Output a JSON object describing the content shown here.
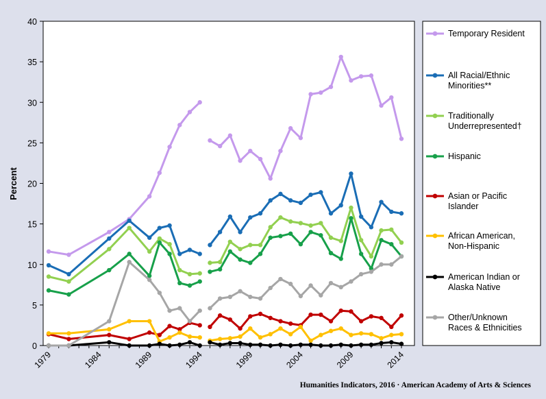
{
  "footer": {
    "source": "Humanities Indicators, 2016 · American Academy of Arts & Sciences"
  },
  "chart_data": {
    "type": "line",
    "title": "",
    "xlabel": "",
    "ylabel": "Percent",
    "ylim": [
      0,
      40
    ],
    "xlim": [
      1979,
      2014
    ],
    "yticks": [
      0,
      5,
      10,
      15,
      20,
      25,
      30,
      35,
      40
    ],
    "xticks": [
      1979,
      1984,
      1989,
      1994,
      1999,
      2004,
      2009,
      2014
    ],
    "grid": false,
    "legend": "right",
    "x": [
      1979,
      1981,
      1985,
      1987,
      1989,
      1990,
      1991,
      1992,
      1993,
      1994,
      1995,
      1996,
      1997,
      1998,
      1999,
      2000,
      2001,
      2002,
      2003,
      2004,
      2005,
      2006,
      2007,
      2008,
      2009,
      2010,
      2011,
      2012,
      2013,
      2014
    ],
    "series": [
      {
        "name": "Temporary Resident",
        "color": "#c499ec",
        "values": [
          11.6,
          11.2,
          14.0,
          15.6,
          18.4,
          21.3,
          24.5,
          27.2,
          28.8,
          30.0,
          25.3,
          24.6,
          25.9,
          22.8,
          24.0,
          23.0,
          20.6,
          24.0,
          26.8,
          25.6,
          31.0,
          31.2,
          31.9,
          35.6,
          32.7,
          33.2,
          33.3,
          29.6,
          30.6,
          25.5
        ]
      },
      {
        "name": "All Racial/Ethnic Minorities**",
        "color": "#1a6db5",
        "values": [
          9.9,
          8.8,
          13.2,
          15.4,
          13.3,
          14.5,
          14.8,
          11.3,
          11.8,
          11.3,
          12.4,
          14.0,
          15.9,
          14.0,
          15.8,
          16.3,
          17.9,
          18.7,
          17.9,
          17.6,
          18.6,
          18.9,
          16.3,
          17.3,
          21.2,
          15.9,
          14.6,
          17.7,
          16.5,
          16.3
        ]
      },
      {
        "name": "Traditionally Underrepresented†",
        "color": "#92d050",
        "values": [
          8.5,
          7.9,
          11.9,
          14.5,
          11.6,
          13.2,
          12.5,
          9.3,
          8.8,
          8.9,
          10.2,
          10.3,
          12.8,
          11.9,
          12.4,
          12.4,
          14.6,
          15.8,
          15.3,
          15.1,
          14.8,
          15.1,
          13.3,
          12.9,
          17.0,
          13.0,
          11.0,
          14.2,
          14.3,
          12.7
        ]
      },
      {
        "name": "Hispanic",
        "color": "#17a04a",
        "values": [
          6.8,
          6.3,
          9.3,
          11.3,
          8.6,
          12.7,
          11.3,
          7.7,
          7.4,
          7.9,
          9.1,
          9.4,
          11.6,
          10.6,
          10.2,
          11.3,
          13.3,
          13.5,
          13.8,
          12.5,
          14.0,
          13.6,
          11.4,
          10.7,
          15.7,
          11.3,
          9.5,
          13.0,
          12.5,
          11.0
        ]
      },
      {
        "name": "Asian or Pacific Islander",
        "color": "#c00000",
        "values": [
          1.4,
          0.8,
          1.3,
          0.8,
          1.6,
          1.3,
          2.4,
          2.0,
          2.8,
          2.5,
          2.3,
          3.7,
          3.2,
          2.1,
          3.6,
          3.9,
          3.4,
          3.0,
          2.7,
          2.5,
          3.8,
          3.8,
          3.0,
          4.3,
          4.2,
          3.0,
          3.6,
          3.4,
          2.3,
          3.7
        ]
      },
      {
        "name": "African American, Non-Hispanic",
        "color": "#ffc000",
        "values": [
          1.5,
          1.5,
          2.0,
          3.0,
          3.0,
          0.5,
          1.0,
          1.6,
          1.1,
          1.0,
          0.6,
          0.8,
          0.9,
          1.1,
          2.1,
          1.0,
          1.4,
          2.1,
          1.4,
          2.3,
          0.6,
          1.3,
          1.8,
          2.1,
          1.3,
          1.5,
          1.4,
          0.9,
          1.3,
          1.4
        ]
      },
      {
        "name": "American Indian or Alaska Native",
        "color": "#000000",
        "values": [
          0.0,
          0.0,
          0.4,
          0.0,
          0.0,
          0.2,
          0.0,
          0.1,
          0.4,
          0.0,
          0.4,
          0.1,
          0.3,
          0.3,
          0.1,
          0.1,
          0.0,
          0.1,
          0.0,
          0.1,
          0.1,
          0.0,
          0.0,
          0.1,
          0.0,
          0.1,
          0.1,
          0.3,
          0.4,
          0.2
        ]
      },
      {
        "name": "Other/Unknown Races & Ethnicities",
        "color": "#a6a6a6",
        "values": [
          0.0,
          0.0,
          3.0,
          10.3,
          8.1,
          6.5,
          4.3,
          4.6,
          3.0,
          4.3,
          4.6,
          5.8,
          6.0,
          6.7,
          6.0,
          5.8,
          7.1,
          8.2,
          7.6,
          6.1,
          7.4,
          6.2,
          7.7,
          7.2,
          7.9,
          8.8,
          9.1,
          10.0,
          10.0,
          11.0
        ]
      }
    ]
  }
}
